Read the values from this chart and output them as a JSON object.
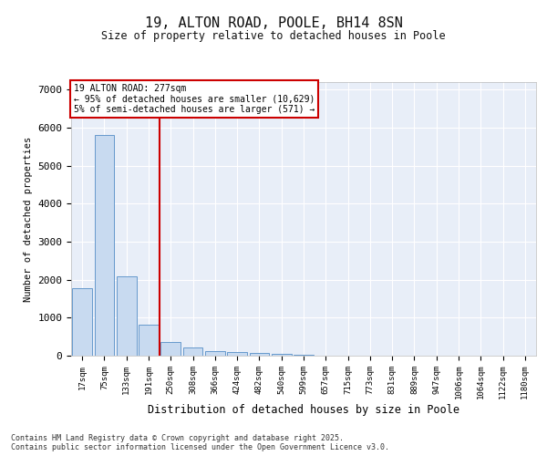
{
  "title_line1": "19, ALTON ROAD, POOLE, BH14 8SN",
  "title_line2": "Size of property relative to detached houses in Poole",
  "xlabel": "Distribution of detached houses by size in Poole",
  "ylabel": "Number of detached properties",
  "categories": [
    "17sqm",
    "75sqm",
    "133sqm",
    "191sqm",
    "250sqm",
    "308sqm",
    "366sqm",
    "424sqm",
    "482sqm",
    "540sqm",
    "599sqm",
    "657sqm",
    "715sqm",
    "773sqm",
    "831sqm",
    "889sqm",
    "947sqm",
    "1006sqm",
    "1064sqm",
    "1122sqm",
    "1180sqm"
  ],
  "values": [
    1780,
    5820,
    2100,
    820,
    370,
    220,
    130,
    100,
    80,
    55,
    35,
    0,
    0,
    0,
    0,
    0,
    0,
    0,
    0,
    0,
    0
  ],
  "bar_color": "#c8daf0",
  "bar_edge_color": "#6699cc",
  "vline_color": "#cc0000",
  "vline_label": "19 ALTON ROAD: 277sqm",
  "annotation_smaller": "← 95% of detached houses are smaller (10,629)",
  "annotation_larger": "5% of semi-detached houses are larger (571) →",
  "annotation_box_color": "#cc0000",
  "annotation_box_fill": "#ffffff",
  "ylim": [
    0,
    7200
  ],
  "yticks": [
    0,
    1000,
    2000,
    3000,
    4000,
    5000,
    6000,
    7000
  ],
  "background_color": "#e8eef8",
  "axes_bg_color": "#e8eef8",
  "fig_bg_color": "#ffffff",
  "grid_color": "#ffffff",
  "footer_line1": "Contains HM Land Registry data © Crown copyright and database right 2025.",
  "footer_line2": "Contains public sector information licensed under the Open Government Licence v3.0."
}
